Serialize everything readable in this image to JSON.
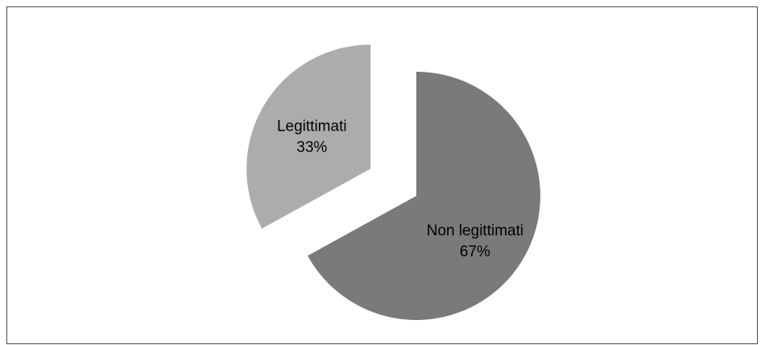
{
  "chart_data": {
    "type": "pie",
    "title": "",
    "slices": [
      {
        "label": "Non legittimati",
        "percent_label": "67%",
        "value": 67,
        "color": "#7a7a7a",
        "exploded": false
      },
      {
        "label": "Legittimati",
        "percent_label": "33%",
        "value": 33,
        "color": "#acacac",
        "exploded": true
      }
    ],
    "legend": "none",
    "data_labels": "inside"
  }
}
